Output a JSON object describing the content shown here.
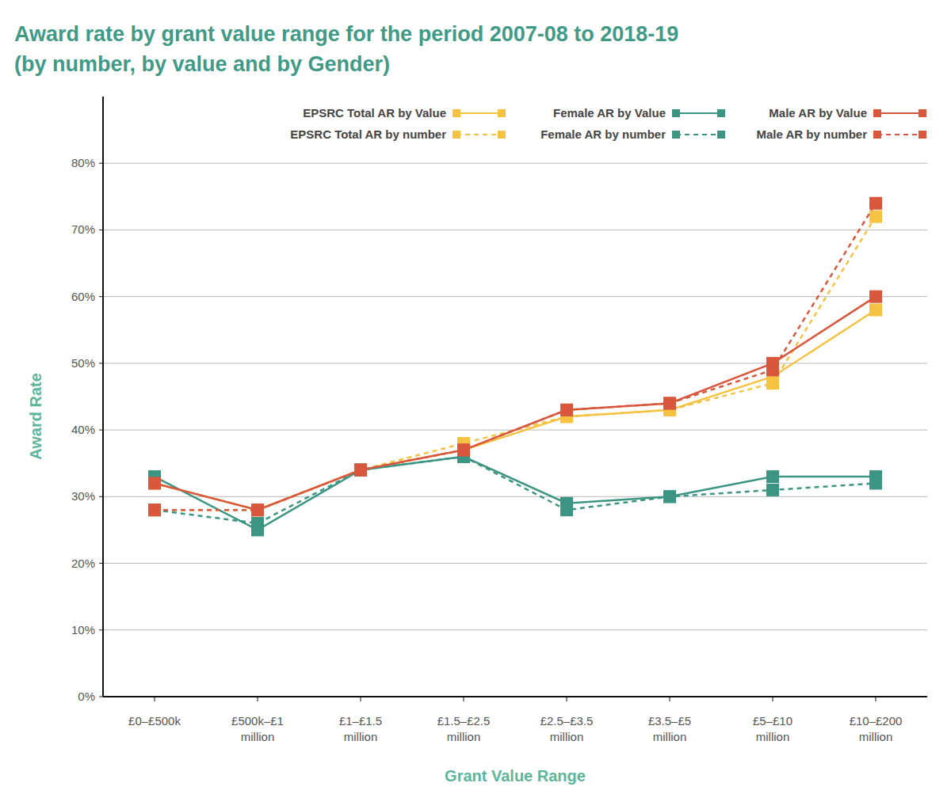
{
  "chart_data": {
    "type": "line",
    "title": "Award rate by grant value range for the period 2007-08 to 2018-19",
    "subtitle": "(by number, by value and by Gender)",
    "x_label": "Grant Value Range",
    "y_label": "Award Rate",
    "categories": [
      "£0–£500k",
      "£500k–£1 million",
      "£1–£1.5 million",
      "£1.5–£2.5 million",
      "£2.5–£3.5 million",
      "£3.5–£5 million",
      "£5–£10 million",
      "£10–£200 million"
    ],
    "ylim": [
      0,
      90
    ],
    "yticks": [
      {
        "value": 0,
        "label": "0%"
      },
      {
        "value": 10,
        "label": "10%"
      },
      {
        "value": 20,
        "label": "20%"
      },
      {
        "value": 30,
        "label": "30%"
      },
      {
        "value": 40,
        "label": "40%"
      },
      {
        "value": 50,
        "label": "50%"
      },
      {
        "value": 60,
        "label": "60%"
      },
      {
        "value": 70,
        "label": "70%"
      },
      {
        "value": 80,
        "label": "80%"
      }
    ],
    "grid": true,
    "legend": "top-right",
    "series": [
      {
        "name": "EPSRC Total AR by Value",
        "color": "#f5c242",
        "line_style": "solid",
        "marker": "square",
        "values": [
          32,
          28,
          34,
          37,
          42,
          43,
          48,
          58
        ]
      },
      {
        "name": "EPSRC Total AR by number",
        "color": "#f5c242",
        "line_style": "dashed",
        "marker": "square",
        "values": [
          28,
          28,
          34,
          38,
          42,
          43,
          47,
          72
        ]
      },
      {
        "name": "Female AR by Value",
        "color": "#3b9582",
        "line_style": "solid",
        "marker": "square",
        "values": [
          33,
          25,
          34,
          36,
          29,
          30,
          33,
          33
        ]
      },
      {
        "name": "Female AR by number",
        "color": "#3b9582",
        "line_style": "dashed",
        "marker": "square",
        "values": [
          28,
          26,
          34,
          36,
          28,
          30,
          31,
          32
        ]
      },
      {
        "name": "Male AR by Value",
        "color": "#d9573d",
        "line_style": "solid",
        "marker": "square",
        "values": [
          32,
          28,
          34,
          37,
          43,
          44,
          50,
          60
        ]
      },
      {
        "name": "Male AR by number",
        "color": "#d9573d",
        "line_style": "dashed",
        "marker": "square",
        "values": [
          28,
          28,
          34,
          37,
          43,
          44,
          49,
          74
        ]
      }
    ]
  }
}
